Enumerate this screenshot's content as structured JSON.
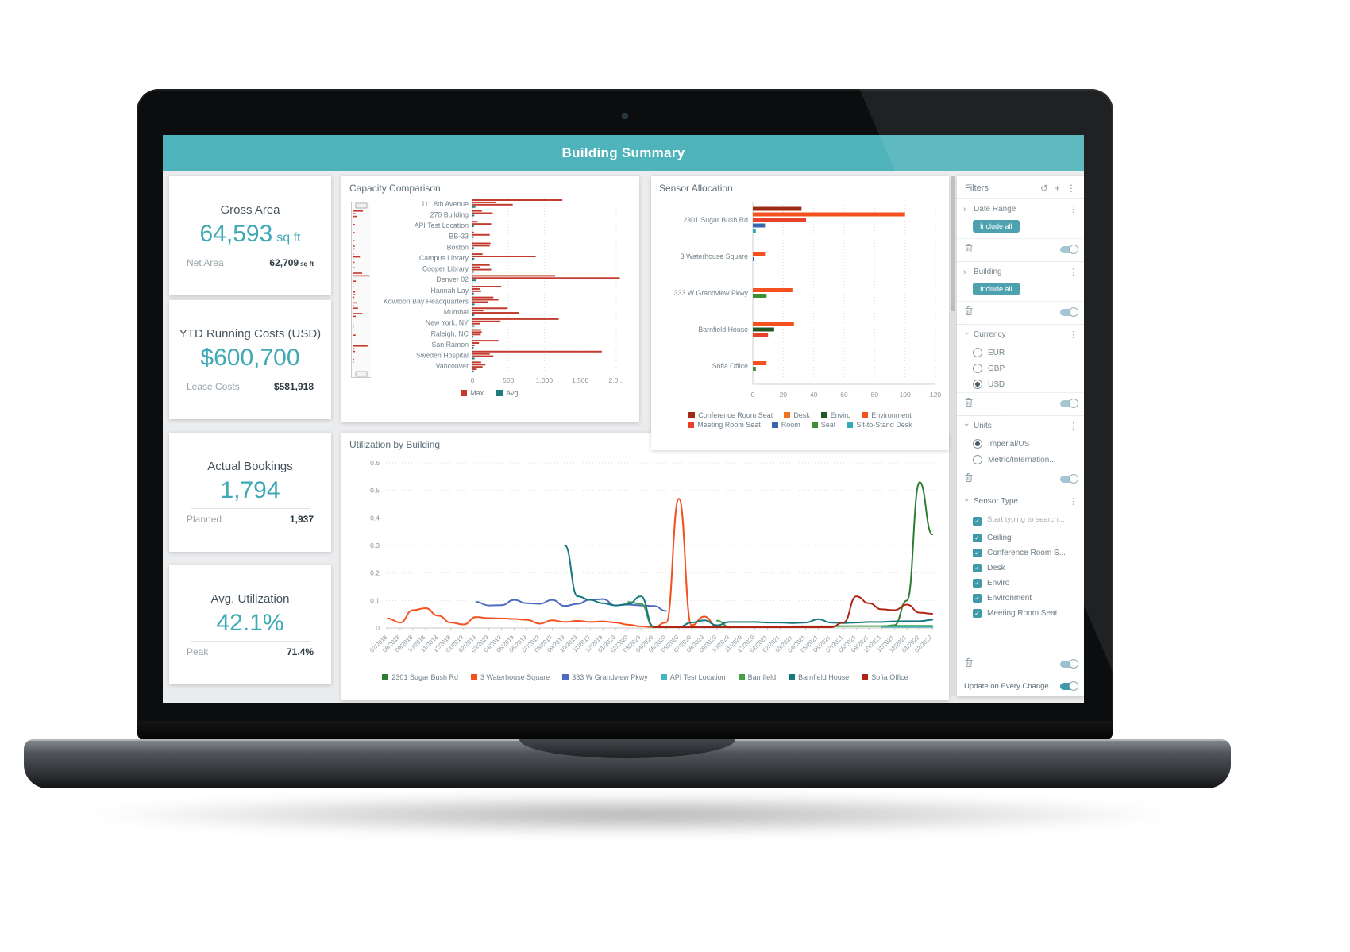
{
  "header": {
    "title": "Building Summary"
  },
  "icons": {
    "refresh": "↺",
    "add": "+",
    "kebab": "⋮",
    "chevron": "›",
    "check": "✓"
  },
  "colors": {
    "header_teal": "#4fb3bc",
    "accent_teal": "#3fa9b5",
    "chip_teal": "#3e9aa8",
    "bar_red": "#c23b2e",
    "bar_teal": "#1e7b80"
  },
  "kpi_cards": [
    {
      "title": "Gross Area",
      "value": "64,593",
      "unit": "sq ft",
      "sub_label": "Net Area",
      "sub_value": "62,709",
      "sub_unit": "sq ft"
    },
    {
      "title": "YTD Running Costs (USD)",
      "value": "$600,700",
      "unit": "",
      "sub_label": "Lease Costs",
      "sub_value": "$581,918",
      "sub_unit": ""
    },
    {
      "title": "Actual Bookings",
      "value": "1,794",
      "unit": "",
      "sub_label": "Planned",
      "sub_value": "1,937",
      "sub_unit": ""
    },
    {
      "title": "Avg. Utilization",
      "value": "42.1%",
      "unit": "",
      "sub_label": "Peak",
      "sub_value": "71.4%",
      "sub_unit": ""
    }
  ],
  "filters": {
    "title": "Filters",
    "update_label": "Update on Every Change",
    "sections": [
      {
        "label": "Date Range",
        "state": "collapsed",
        "include_button": "Include all"
      },
      {
        "label": "Building",
        "state": "collapsed",
        "include_button": "Include all"
      },
      {
        "label": "Currency",
        "state": "expanded",
        "options": [
          {
            "label": "EUR",
            "selected": false
          },
          {
            "label": "GBP",
            "selected": false
          },
          {
            "label": "USD",
            "selected": true
          }
        ]
      },
      {
        "label": "Units",
        "state": "expanded",
        "options": [
          {
            "label": "Imperial/US",
            "selected": true
          },
          {
            "label": "Metric/Internation...",
            "selected": false
          }
        ]
      },
      {
        "label": "Sensor Type",
        "state": "expanded",
        "search_placeholder": "Start typing to search...",
        "options": [
          {
            "label": "Ceiling",
            "checked": true
          },
          {
            "label": "Conference Room S...",
            "checked": true
          },
          {
            "label": "Desk",
            "checked": true
          },
          {
            "label": "Enviro",
            "checked": true
          },
          {
            "label": "Environment",
            "checked": true
          },
          {
            "label": "Meeting Room Seat",
            "checked": true
          }
        ]
      }
    ]
  },
  "chart_data": [
    {
      "type": "bar",
      "orientation": "horizontal",
      "title": "Capacity Comparison",
      "xlabel": "",
      "ylabel": "",
      "xlim": [
        0,
        2100
      ],
      "xticks": {
        "values": [
          0,
          500,
          1000,
          1500,
          2000
        ],
        "labels": [
          "0",
          "500",
          "1,000",
          "1,500",
          "2,0..."
        ]
      },
      "legend": [
        {
          "label": "Max",
          "color": "#c23b2e"
        },
        {
          "label": "Avg.",
          "color": "#1e7b80"
        }
      ],
      "buildings": [
        {
          "name": "111 8th Avenue",
          "max": [
            1250,
            330,
            560
          ],
          "avg": 40
        },
        {
          "name": "270 Building",
          "max": [
            130,
            280
          ],
          "avg": 25
        },
        {
          "name": "API Test Location",
          "max": [
            70,
            260
          ],
          "avg": 20
        },
        {
          "name": "BB-33",
          "max": [
            20,
            240
          ],
          "avg": 15
        },
        {
          "name": "Boston",
          "max": [
            250,
            240
          ],
          "avg": 20
        },
        {
          "name": "Campus Library",
          "max": [
            140,
            880
          ],
          "avg": 25
        },
        {
          "name": "Cooper Library",
          "max": [
            240,
            100,
            260
          ],
          "avg": 20
        },
        {
          "name": "Denver 02",
          "max": [
            1150,
            2050
          ],
          "avg": 45
        },
        {
          "name": "Hannah Lay",
          "max": [
            400,
            100,
            120
          ],
          "avg": 20
        },
        {
          "name": "Kowloon Bay Headquarters",
          "max": [
            290,
            360,
            210
          ],
          "avg": 30
        },
        {
          "name": "Mumbai",
          "max": [
            490,
            150,
            650
          ],
          "avg": 25
        },
        {
          "name": "New York, NY",
          "max": [
            1200,
            390,
            100
          ],
          "avg": 30
        },
        {
          "name": "Raleigh, NC",
          "max": [
            120,
            130,
            115
          ],
          "avg": 15
        },
        {
          "name": "San Ramon",
          "max": [
            360,
            90,
            30
          ],
          "avg": 15
        },
        {
          "name": "Sweden Hospital",
          "max": [
            1800,
            240,
            290
          ],
          "avg": 30
        },
        {
          "name": "Vancouver",
          "max": [
            120,
            180,
            140,
            60
          ],
          "avg": 20
        }
      ]
    },
    {
      "type": "bar",
      "orientation": "horizontal",
      "title": "Sensor Allocation",
      "xlim": [
        0,
        120
      ],
      "xticks": {
        "values": [
          0,
          20,
          40,
          60,
          80,
          100,
          120
        ],
        "labels": [
          "0",
          "20",
          "40",
          "60",
          "80",
          "100",
          "120"
        ]
      },
      "sensor_colors": {
        "Conference Room Seat": "#9e2b16",
        "Desk": "#f0731f",
        "Enviro": "#205723",
        "Environment": "#f4511e",
        "Meeting Room Seat": "#e8432a",
        "Room": "#3a66ae",
        "Seat": "#3e8f34",
        "Sit-to-Stand Desk": "#36a9b8"
      },
      "legend_rows": [
        [
          "Conference Room Seat",
          "Desk",
          "Enviro",
          "Environment"
        ],
        [
          "Meeting Room Seat",
          "Room",
          "Seat",
          "Sit-to-Stand Desk"
        ]
      ],
      "groups": [
        {
          "name": "2301 Sugar Bush Rd",
          "bars": [
            [
              "Conference Room Seat",
              32
            ],
            [
              "Environment",
              100
            ],
            [
              "Meeting Room Seat",
              35
            ],
            [
              "Room",
              8
            ],
            [
              "Sit-to-Stand Desk",
              2
            ]
          ]
        },
        {
          "name": "3 Waterhouse Square",
          "bars": [
            [
              "Environment",
              8
            ],
            [
              "Room",
              1
            ]
          ]
        },
        {
          "name": "333 W Grandview Pkwy",
          "bars": [
            [
              "Environment",
              26
            ],
            [
              "Seat",
              9
            ]
          ]
        },
        {
          "name": "Barnfield House",
          "bars": [
            [
              "Environment",
              27
            ],
            [
              "Enviro",
              14
            ],
            [
              "Meeting Room Seat",
              10
            ]
          ]
        },
        {
          "name": "Sofia Office",
          "bars": [
            [
              "Environment",
              9
            ],
            [
              "Seat",
              2
            ]
          ]
        }
      ]
    },
    {
      "type": "line",
      "title": "Utilization by Building",
      "ylim": [
        0,
        0.6
      ],
      "yticks": [
        "0",
        "0.1",
        "0.2",
        "0.3",
        "0.4",
        "0.5",
        "0.6"
      ],
      "grid": true,
      "legend_position": "bottom",
      "x": [
        "07/2018",
        "08/2018",
        "09/2018",
        "10/2018",
        "11/2018",
        "12/2018",
        "01/2019",
        "02/2019",
        "03/2019",
        "04/2019",
        "05/2019",
        "06/2019",
        "07/2019",
        "08/2019",
        "09/2019",
        "10/2019",
        "11/2019",
        "12/2019",
        "01/2020",
        "02/2020",
        "03/2020",
        "04/2020",
        "05/2020",
        "06/2020",
        "07/2020",
        "08/2020",
        "09/2020",
        "10/2020",
        "11/2020",
        "12/2020",
        "01/2021",
        "02/2021",
        "03/2021",
        "04/2021",
        "05/2021",
        "06/2021",
        "07/2021",
        "08/2021",
        "09/2021",
        "10/2021",
        "11/2021",
        "12/2021",
        "01/2022",
        "02/2022"
      ],
      "series": [
        {
          "name": "2301 Sugar Bush Rd",
          "color": "#2e7d32",
          "values": [
            null,
            null,
            null,
            null,
            null,
            null,
            null,
            null,
            null,
            null,
            null,
            null,
            null,
            null,
            null,
            null,
            null,
            null,
            null,
            null,
            null,
            null,
            null,
            null,
            null,
            null,
            null,
            null,
            null,
            null,
            null,
            null,
            null,
            null,
            null,
            null,
            null,
            null,
            null,
            0.005,
            0.01,
            0.1,
            0.53,
            0.34
          ]
        },
        {
          "name": "3 Waterhouse Square",
          "color": "#f4511e",
          "values": [
            0.035,
            0.02,
            0.065,
            0.072,
            0.045,
            0.02,
            0.013,
            0.04,
            0.036,
            0.035,
            0.033,
            0.03,
            0.016,
            0.028,
            0.022,
            0.026,
            0.022,
            0.024,
            0.02,
            0.012,
            0.006,
            0.003,
            0.02,
            0.47,
            0.01,
            0.042,
            0.006,
            0.004,
            0.004,
            0.004,
            0.004,
            0.003,
            null,
            null,
            null,
            null,
            null,
            null,
            null,
            null,
            null,
            null,
            null,
            null
          ]
        },
        {
          "name": "333 W Grandview Pkwy",
          "color": "#4f6bbd",
          "values": [
            null,
            null,
            null,
            null,
            null,
            null,
            null,
            0.095,
            0.082,
            0.083,
            0.102,
            0.09,
            0.088,
            0.102,
            0.08,
            0.088,
            0.103,
            0.105,
            0.082,
            0.085,
            0.082,
            0.08,
            0.062,
            null,
            null,
            null,
            null,
            null,
            null,
            null,
            null,
            null,
            null,
            null,
            null,
            null,
            null,
            null,
            null,
            null,
            null,
            null,
            null,
            null
          ]
        },
        {
          "name": "API Test Location",
          "color": "#45b5c4",
          "values": [
            null,
            null,
            null,
            null,
            null,
            null,
            null,
            null,
            null,
            null,
            null,
            null,
            null,
            null,
            null,
            null,
            null,
            null,
            null,
            null,
            null,
            null,
            null,
            null,
            null,
            null,
            null,
            null,
            null,
            null,
            null,
            null,
            null,
            null,
            null,
            null,
            null,
            null,
            null,
            0.004,
            0.004,
            0.004,
            0.004,
            0.004
          ]
        },
        {
          "name": "Barnfield",
          "color": "#43a047",
          "values": [
            null,
            null,
            null,
            null,
            null,
            null,
            null,
            null,
            null,
            null,
            null,
            null,
            null,
            null,
            null,
            null,
            null,
            null,
            null,
            0.095,
            0.088,
            0.003,
            null,
            null,
            null,
            null,
            0.027,
            0.004,
            0.004,
            0.005,
            0.005,
            0.005,
            0.006,
            0.006,
            0.006,
            0.006,
            0.007,
            0.007,
            0.007,
            0.007,
            0.008,
            0.008,
            0.008,
            0.008
          ]
        },
        {
          "name": "Barnfield House",
          "color": "#17777e",
          "values": [
            null,
            null,
            null,
            null,
            null,
            null,
            null,
            null,
            null,
            null,
            null,
            null,
            null,
            null,
            0.3,
            0.115,
            0.102,
            0.09,
            0.082,
            0.087,
            0.115,
            0.005,
            0.004,
            0.004,
            0.02,
            0.028,
            0.01,
            0.022,
            0.022,
            0.022,
            0.02,
            0.02,
            0.018,
            0.02,
            0.032,
            0.02,
            0.018,
            0.02,
            0.022,
            0.022,
            0.024,
            0.025,
            0.025,
            0.03
          ]
        },
        {
          "name": "Sofia Office",
          "color": "#b02418",
          "values": [
            null,
            null,
            null,
            null,
            null,
            null,
            null,
            null,
            null,
            null,
            null,
            null,
            null,
            null,
            null,
            null,
            null,
            null,
            null,
            null,
            null,
            0.003,
            0.003,
            0.003,
            0.003,
            0.003,
            0.003,
            0.003,
            0.003,
            0.003,
            0.003,
            0.003,
            0.003,
            0.003,
            0.003,
            0.003,
            0.02,
            0.115,
            0.09,
            0.068,
            0.065,
            0.085,
            0.056,
            0.052
          ]
        }
      ]
    }
  ]
}
